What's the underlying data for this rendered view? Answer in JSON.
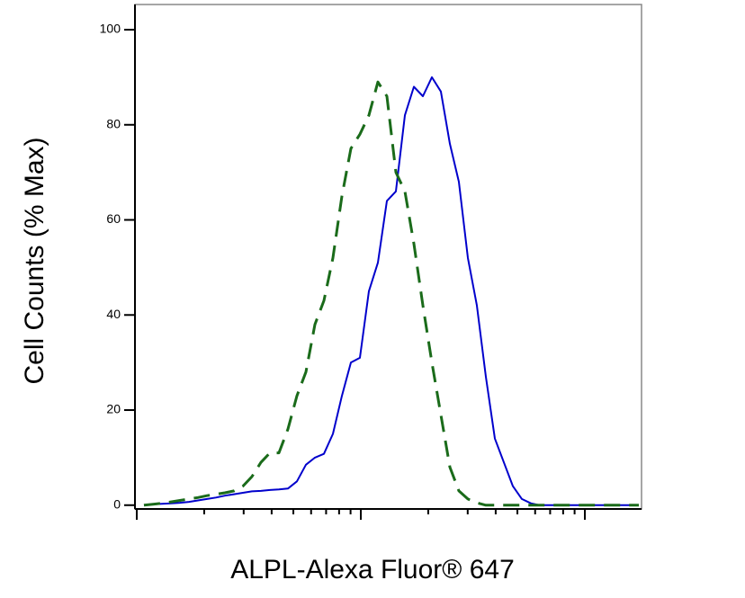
{
  "chart_data": {
    "type": "line",
    "xlabel": "ALPL-Alexa Fluor® 647",
    "ylabel": "Cell Counts (% Max)",
    "ylim": [
      -0.8,
      105.3
    ],
    "yticks": [
      0,
      20,
      40,
      60,
      80,
      100
    ],
    "xscale": "log",
    "series": [
      {
        "color": "#0000cc",
        "style": "solid",
        "values": [
          0,
          0.2,
          0.3,
          0.4,
          0.5,
          0.7,
          1,
          1.3,
          1.6,
          2,
          2.3,
          2.6,
          2.9,
          3,
          3.2,
          3.3,
          3.5,
          5,
          8.5,
          10,
          10.8,
          15,
          23,
          30,
          31,
          45,
          51,
          64,
          66,
          82,
          88,
          86,
          90,
          87,
          76,
          68,
          52,
          42,
          27,
          14,
          9,
          4,
          1.3,
          0.4,
          0,
          0,
          0,
          0,
          0,
          0,
          0,
          0,
          0,
          0,
          0,
          0
        ]
      },
      {
        "color": "#1a6b1a",
        "style": "dashed",
        "values": [
          0,
          0.2,
          0.4,
          0.7,
          1,
          1.3,
          1.6,
          2,
          2.3,
          2.6,
          3,
          4,
          6,
          9,
          11,
          11,
          16,
          23,
          28,
          38,
          43,
          52,
          65,
          75,
          78,
          82,
          89,
          86,
          70,
          66,
          55,
          42,
          30,
          19,
          8,
          3,
          1.3,
          0.5,
          0,
          0,
          0,
          0,
          0,
          0,
          0,
          0,
          0,
          0,
          0,
          0,
          0,
          0,
          0,
          0,
          0,
          0
        ]
      }
    ]
  }
}
